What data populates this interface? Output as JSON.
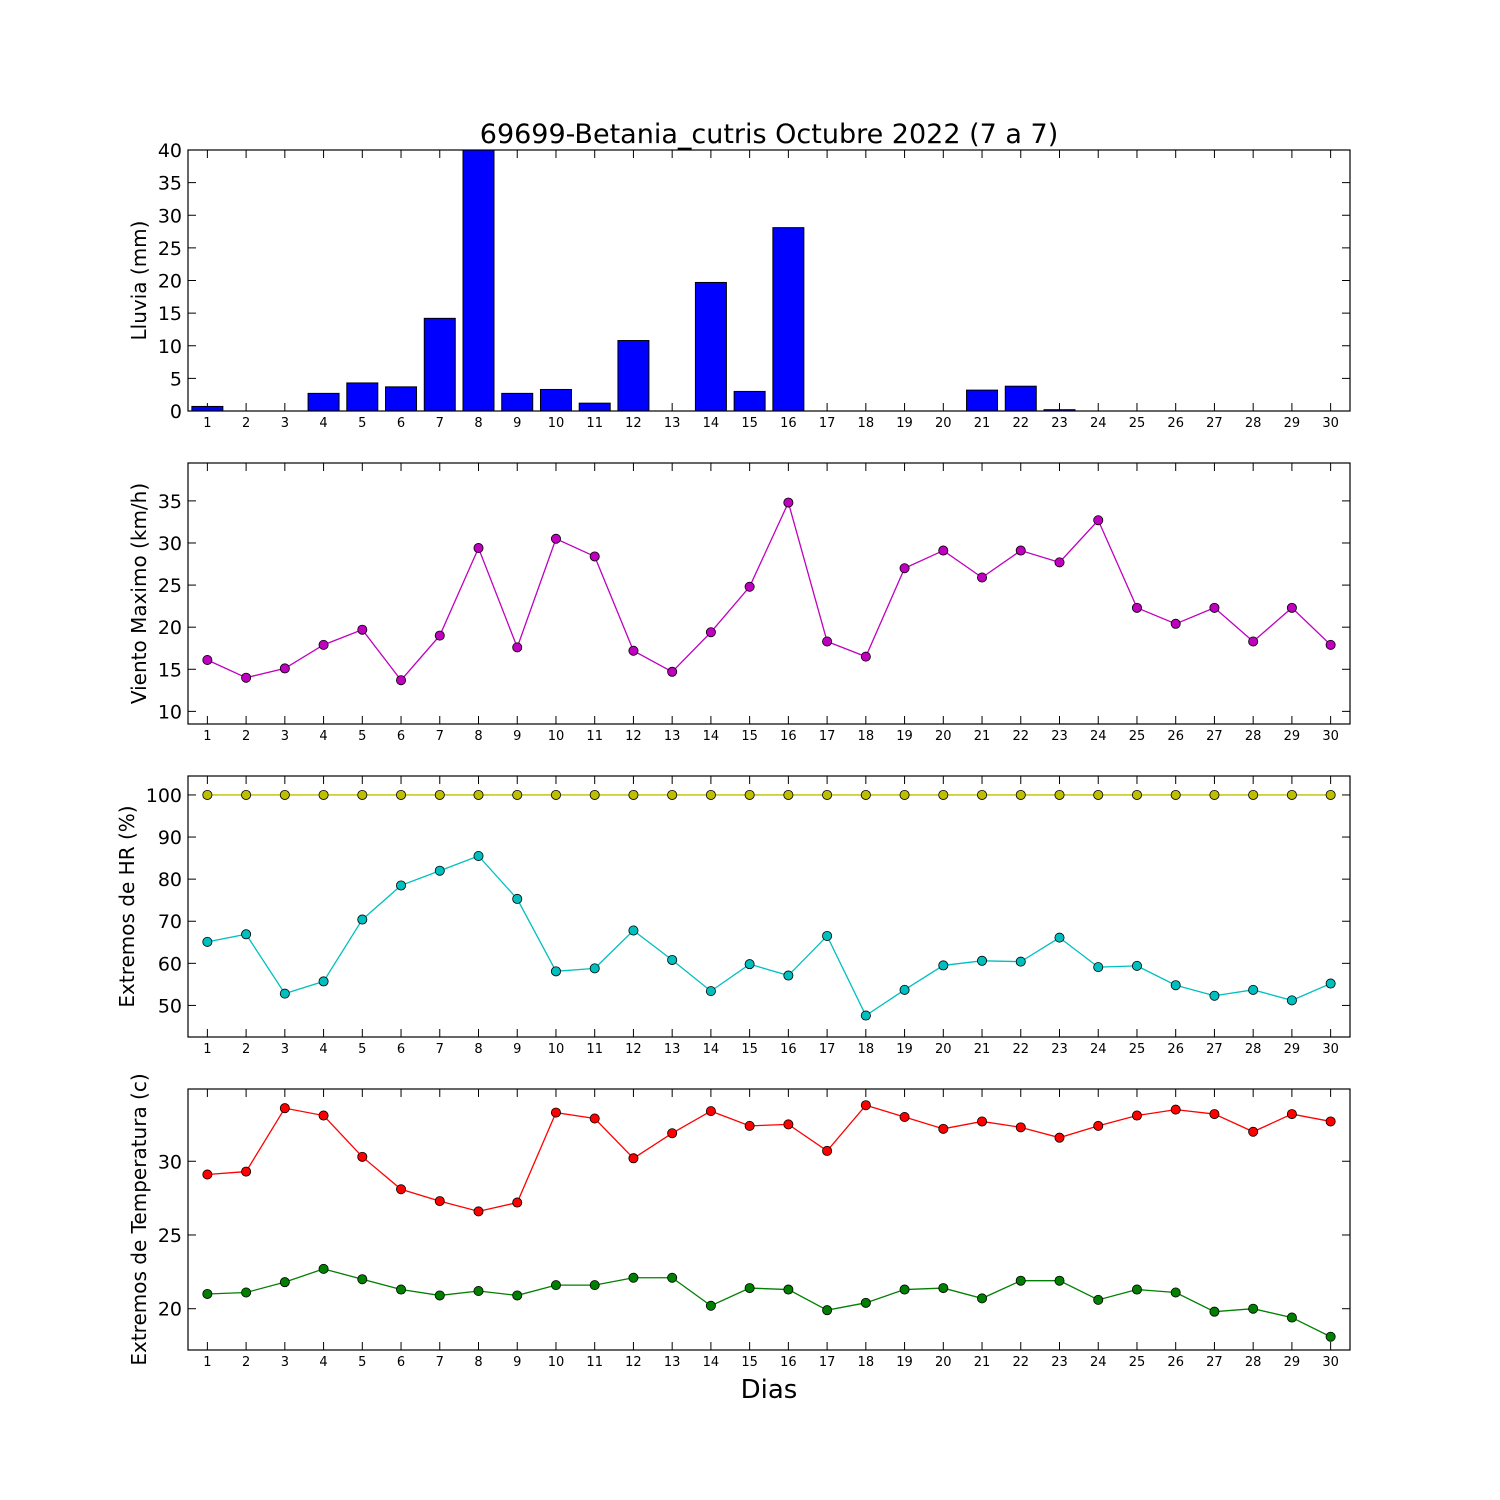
{
  "title": "69699-Betania_cutris Octubre 2022  (7 a 7)",
  "xlabel": "Dias",
  "colors": {
    "rain": "#0000ff",
    "wind": "#bf00bf",
    "hr_max": "#bfbf00",
    "hr_min": "#00bfbf",
    "temp_max": "#ff0000",
    "temp_min": "#007f00"
  },
  "chart_data": [
    {
      "type": "bar",
      "ylabel": "Lluvia (mm)",
      "categories": [
        "1",
        "2",
        "3",
        "4",
        "5",
        "6",
        "7",
        "8",
        "9",
        "10",
        "11",
        "12",
        "13",
        "14",
        "15",
        "16",
        "17",
        "18",
        "19",
        "20",
        "21",
        "22",
        "23",
        "24",
        "25",
        "26",
        "27",
        "28",
        "29",
        "30"
      ],
      "series": [
        {
          "values": [
            0.7,
            0,
            0,
            2.7,
            4.3,
            3.7,
            14.2,
            40,
            2.7,
            3.3,
            1.2,
            10.8,
            0,
            19.7,
            3.0,
            28.1,
            0,
            0,
            0,
            0,
            3.2,
            3.8,
            0.2,
            0,
            0,
            0,
            0,
            0,
            0,
            0
          ]
        }
      ],
      "ylim": [
        0,
        40
      ],
      "yticks": [
        0,
        5,
        10,
        15,
        20,
        25,
        30,
        35,
        40
      ]
    },
    {
      "type": "line",
      "ylabel": "Viento Maximo (km/h)",
      "categories": [
        "1",
        "2",
        "3",
        "4",
        "5",
        "6",
        "7",
        "8",
        "9",
        "10",
        "11",
        "12",
        "13",
        "14",
        "15",
        "16",
        "17",
        "18",
        "19",
        "20",
        "21",
        "22",
        "23",
        "24",
        "25",
        "26",
        "27",
        "28",
        "29",
        "30"
      ],
      "series": [
        {
          "values": [
            16.1,
            14.0,
            15.1,
            17.9,
            19.7,
            13.7,
            19.0,
            29.4,
            17.6,
            30.5,
            28.4,
            17.2,
            14.7,
            19.4,
            24.8,
            34.8,
            18.3,
            16.5,
            27.0,
            29.1,
            25.9,
            29.1,
            27.7,
            32.7,
            22.3,
            20.4,
            22.3,
            18.3,
            22.3,
            17.9
          ]
        }
      ],
      "ylim": [
        8.5,
        39.5
      ],
      "yticks": [
        10,
        15,
        20,
        25,
        30,
        35
      ]
    },
    {
      "type": "line",
      "ylabel": "Extremos de HR (%)",
      "categories": [
        "1",
        "2",
        "3",
        "4",
        "5",
        "6",
        "7",
        "8",
        "9",
        "10",
        "11",
        "12",
        "13",
        "14",
        "15",
        "16",
        "17",
        "18",
        "19",
        "20",
        "21",
        "22",
        "23",
        "24",
        "25",
        "26",
        "27",
        "28",
        "29",
        "30"
      ],
      "series": [
        {
          "values": [
            100,
            100,
            100,
            100,
            100,
            100,
            100,
            100,
            100,
            100,
            100,
            100,
            100,
            100,
            100,
            100,
            100,
            100,
            100,
            100,
            100,
            100,
            100,
            100,
            100,
            100,
            100,
            100,
            100,
            100
          ]
        },
        {
          "values": [
            65.1,
            66.9,
            52.8,
            55.7,
            70.4,
            78.5,
            82.0,
            85.5,
            75.3,
            58.1,
            58.8,
            67.8,
            60.8,
            53.4,
            59.8,
            57.1,
            66.5,
            47.6,
            53.7,
            59.5,
            60.6,
            60.4,
            66.1,
            59.1,
            59.4,
            54.8,
            52.3,
            53.7,
            51.2,
            55.2
          ]
        }
      ],
      "ylim": [
        42.5,
        104.5
      ],
      "yticks": [
        50,
        60,
        70,
        80,
        90,
        100
      ]
    },
    {
      "type": "line",
      "ylabel": "Extremos de Temperatura (c)",
      "categories": [
        "1",
        "2",
        "3",
        "4",
        "5",
        "6",
        "7",
        "8",
        "9",
        "10",
        "11",
        "12",
        "13",
        "14",
        "15",
        "16",
        "17",
        "18",
        "19",
        "20",
        "21",
        "22",
        "23",
        "24",
        "25",
        "26",
        "27",
        "28",
        "29",
        "30"
      ],
      "series": [
        {
          "values": [
            29.1,
            29.3,
            33.6,
            33.1,
            30.3,
            28.1,
            27.3,
            26.6,
            27.2,
            33.3,
            32.9,
            30.2,
            31.9,
            33.4,
            32.4,
            32.5,
            30.7,
            33.8,
            33.0,
            32.2,
            32.7,
            32.3,
            31.6,
            32.4,
            33.1,
            33.5,
            33.2,
            32.0,
            33.2,
            32.7
          ]
        },
        {
          "values": [
            21.0,
            21.1,
            21.8,
            22.7,
            22.0,
            21.3,
            20.9,
            21.2,
            20.9,
            21.6,
            21.6,
            22.1,
            22.1,
            20.2,
            21.4,
            21.3,
            19.9,
            20.4,
            21.3,
            21.4,
            20.7,
            21.9,
            21.9,
            20.6,
            21.3,
            21.1,
            19.8,
            20.0,
            19.4,
            18.1
          ]
        }
      ],
      "ylim": [
        17.2,
        34.9
      ],
      "yticks": [
        20,
        25,
        30
      ]
    }
  ]
}
